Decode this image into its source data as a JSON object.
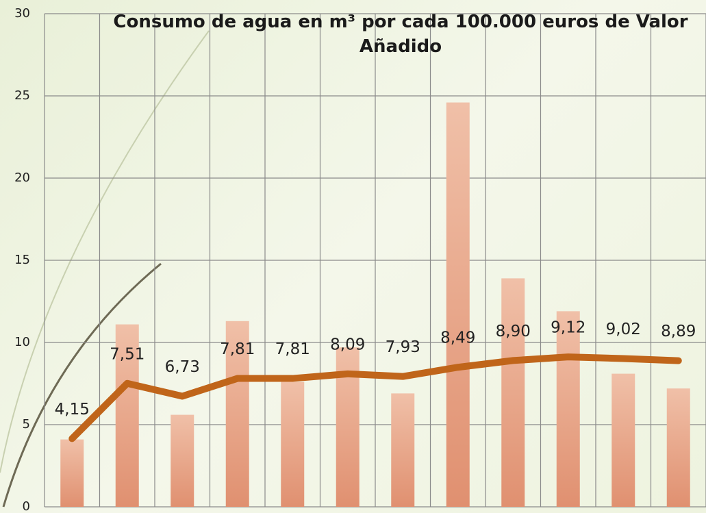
{
  "chart_data": {
    "type": "bar",
    "title": "Consumo de agua en m³ por cada 100.000 euros de Valor Añadido",
    "categories": [
      null,
      null,
      null,
      null,
      null,
      null,
      null,
      null,
      null,
      null,
      null,
      null
    ],
    "series": [
      {
        "type": "bar",
        "color": "#e8a888",
        "values": [
          4.1,
          11.1,
          5.6,
          11.3,
          7.6,
          9.7,
          6.9,
          24.6,
          13.9,
          11.9,
          8.1,
          7.2
        ]
      },
      {
        "type": "line",
        "color": "#c0651a",
        "values": [
          4.15,
          7.51,
          6.73,
          7.81,
          7.81,
          8.09,
          7.93,
          8.49,
          8.9,
          9.12,
          9.02,
          8.89
        ],
        "value_labels": [
          "4,15",
          "7,51",
          "6,73",
          "7,81",
          "7,81",
          "8,09",
          "7,93",
          "8,49",
          "8,90",
          "9,12",
          "9,02",
          "8,89"
        ]
      }
    ],
    "ylim": [
      0,
      30
    ],
    "yticks": [
      0,
      5,
      10,
      15,
      20,
      25,
      30
    ],
    "grid": true
  }
}
